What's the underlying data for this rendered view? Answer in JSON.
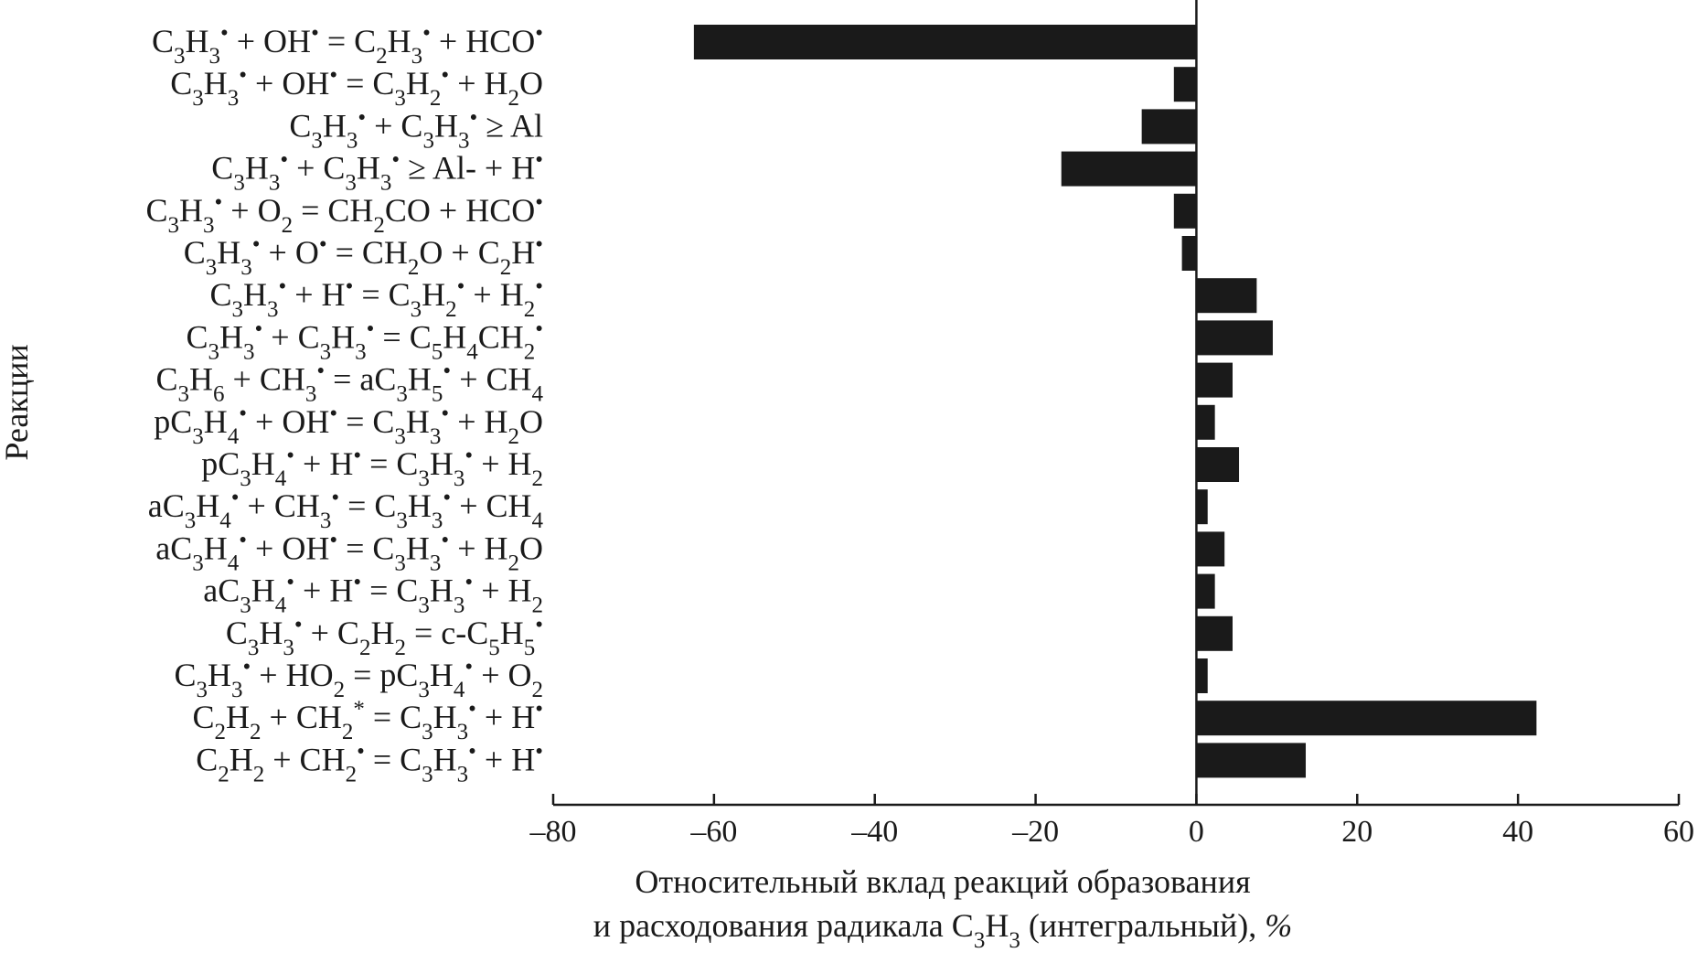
{
  "chart_data": {
    "type": "bar",
    "orientation": "horizontal",
    "ylabel": "Реакции",
    "xlabel_lines": [
      "Относительный вклад реакций образования",
      "и расходования радикала C3H3 (интегральный), %"
    ],
    "xlim": [
      -80,
      60
    ],
    "xticks": [
      -80,
      -60,
      -40,
      -20,
      0,
      20,
      40,
      60
    ],
    "xtick_labels": [
      "–80",
      "–60",
      "–40",
      "–20",
      "0",
      "20",
      "40",
      "60"
    ],
    "grid": false,
    "categories": [
      "C3H3• + OH• = C2H3• + HCO•",
      "C3H3• + OH• = C3H2• + H2O",
      "C3H3• + C3H3• ≥ Al",
      "C3H3• + C3H3• ≥ Al- + H•",
      "C3H3• + O2 = CH2CO + HCO•",
      "C3H3• + O• = CH2O + C2H•",
      "C3H3• + H• = C3H2• + H2•",
      "C3H3• + C3H3• = C5H4CH2•",
      "C3H6 + CH3• = aC3H5• + CH4",
      "pC3H4• + OH• = C3H3• + H2O",
      "pC3H4• + H• = C3H3• + H2",
      "aC3H4• + CH3• = C3H3• + CH4",
      "aC3H4• + OH• = C3H3• + H2O",
      "aC3H4• + H• = C3H3• + H2",
      "C3H3• + C2H2 = c-C5H5•",
      "C3H3• + HO2 = pC3H4• + O2",
      "C2H2 + CH2* = C3H3• + H•",
      "C2H2 + CH2• = C3H3• + H•"
    ],
    "values": [
      -62.5,
      -2.8,
      -6.8,
      -16.8,
      -2.8,
      -1.8,
      7.5,
      9.5,
      4.5,
      2.3,
      5.3,
      1.4,
      3.5,
      2.3,
      4.5,
      1.4,
      42.3,
      13.6
    ],
    "bar_color": "#1a1a1a",
    "label_parts": [
      [
        [
          "C",
          ""
        ],
        [
          "3",
          "sub"
        ],
        [
          "H",
          ""
        ],
        [
          "3",
          "sub"
        ],
        [
          "•",
          "sup"
        ],
        [
          " + OH",
          ""
        ],
        [
          "•",
          "sup"
        ],
        [
          " = C",
          ""
        ],
        [
          "2",
          "sub"
        ],
        [
          "H",
          ""
        ],
        [
          "3",
          "sub"
        ],
        [
          "•",
          "sup"
        ],
        [
          " + HCO",
          ""
        ],
        [
          "•",
          "sup"
        ]
      ],
      [
        [
          "C",
          ""
        ],
        [
          "3",
          "sub"
        ],
        [
          "H",
          ""
        ],
        [
          "3",
          "sub"
        ],
        [
          "•",
          "sup"
        ],
        [
          " + OH",
          ""
        ],
        [
          "•",
          "sup"
        ],
        [
          " = C",
          ""
        ],
        [
          "3",
          "sub"
        ],
        [
          "H",
          ""
        ],
        [
          "2",
          "sub"
        ],
        [
          "•",
          "sup"
        ],
        [
          " + H",
          ""
        ],
        [
          "2",
          "sub"
        ],
        [
          "O",
          ""
        ]
      ],
      [
        [
          "C",
          ""
        ],
        [
          "3",
          "sub"
        ],
        [
          "H",
          ""
        ],
        [
          "3",
          "sub"
        ],
        [
          "•",
          "sup"
        ],
        [
          " + C",
          ""
        ],
        [
          "3",
          "sub"
        ],
        [
          "H",
          ""
        ],
        [
          "3",
          "sub"
        ],
        [
          "•",
          "sup"
        ],
        [
          " ≥ Al",
          ""
        ]
      ],
      [
        [
          "C",
          ""
        ],
        [
          "3",
          "sub"
        ],
        [
          "H",
          ""
        ],
        [
          "3",
          "sub"
        ],
        [
          "•",
          "sup"
        ],
        [
          " + C",
          ""
        ],
        [
          "3",
          "sub"
        ],
        [
          "H",
          ""
        ],
        [
          "3",
          "sub"
        ],
        [
          "•",
          "sup"
        ],
        [
          " ≥ Al- + H",
          ""
        ],
        [
          "•",
          "sup"
        ]
      ],
      [
        [
          "C",
          ""
        ],
        [
          "3",
          "sub"
        ],
        [
          "H",
          ""
        ],
        [
          "3",
          "sub"
        ],
        [
          "•",
          "sup"
        ],
        [
          " + O",
          ""
        ],
        [
          "2",
          "sub"
        ],
        [
          " = CH",
          ""
        ],
        [
          "2",
          "sub"
        ],
        [
          "CO + HCO",
          ""
        ],
        [
          "•",
          "sup"
        ]
      ],
      [
        [
          "C",
          ""
        ],
        [
          "3",
          "sub"
        ],
        [
          "H",
          ""
        ],
        [
          "3",
          "sub"
        ],
        [
          "•",
          "sup"
        ],
        [
          " + O",
          ""
        ],
        [
          "•",
          "sup"
        ],
        [
          " = CH",
          ""
        ],
        [
          "2",
          "sub"
        ],
        [
          "O + C",
          ""
        ],
        [
          "2",
          "sub"
        ],
        [
          "H",
          ""
        ],
        [
          "•",
          "sup"
        ]
      ],
      [
        [
          "C",
          ""
        ],
        [
          "3",
          "sub"
        ],
        [
          "H",
          ""
        ],
        [
          "3",
          "sub"
        ],
        [
          "•",
          "sup"
        ],
        [
          " + H",
          ""
        ],
        [
          "•",
          "sup"
        ],
        [
          " = C",
          ""
        ],
        [
          "3",
          "sub"
        ],
        [
          "H",
          ""
        ],
        [
          "2",
          "sub"
        ],
        [
          "•",
          "sup"
        ],
        [
          " + H",
          ""
        ],
        [
          "2",
          "sub"
        ],
        [
          "•",
          "sup"
        ]
      ],
      [
        [
          "C",
          ""
        ],
        [
          "3",
          "sub"
        ],
        [
          "H",
          ""
        ],
        [
          "3",
          "sub"
        ],
        [
          "•",
          "sup"
        ],
        [
          " + C",
          ""
        ],
        [
          "3",
          "sub"
        ],
        [
          "H",
          ""
        ],
        [
          "3",
          "sub"
        ],
        [
          "•",
          "sup"
        ],
        [
          " = C",
          ""
        ],
        [
          "5",
          "sub"
        ],
        [
          "H",
          ""
        ],
        [
          "4",
          "sub"
        ],
        [
          "CH",
          ""
        ],
        [
          "2",
          "sub"
        ],
        [
          "•",
          "sup"
        ]
      ],
      [
        [
          "C",
          ""
        ],
        [
          "3",
          "sub"
        ],
        [
          "H",
          ""
        ],
        [
          "6",
          "sub"
        ],
        [
          " + CH",
          ""
        ],
        [
          "3",
          "sub"
        ],
        [
          "•",
          "sup"
        ],
        [
          " = aC",
          ""
        ],
        [
          "3",
          "sub"
        ],
        [
          "H",
          ""
        ],
        [
          "5",
          "sub"
        ],
        [
          "•",
          "sup"
        ],
        [
          " + CH",
          ""
        ],
        [
          "4",
          "sub"
        ]
      ],
      [
        [
          "pC",
          ""
        ],
        [
          "3",
          "sub"
        ],
        [
          "H",
          ""
        ],
        [
          "4",
          "sub"
        ],
        [
          "•",
          "sup"
        ],
        [
          " + OH",
          ""
        ],
        [
          "•",
          "sup"
        ],
        [
          " = C",
          ""
        ],
        [
          "3",
          "sub"
        ],
        [
          "H",
          ""
        ],
        [
          "3",
          "sub"
        ],
        [
          "•",
          "sup"
        ],
        [
          " + H",
          ""
        ],
        [
          "2",
          "sub"
        ],
        [
          "O",
          ""
        ]
      ],
      [
        [
          "pC",
          ""
        ],
        [
          "3",
          "sub"
        ],
        [
          "H",
          ""
        ],
        [
          "4",
          "sub"
        ],
        [
          "•",
          "sup"
        ],
        [
          " + H",
          ""
        ],
        [
          "•",
          "sup"
        ],
        [
          " = C",
          ""
        ],
        [
          "3",
          "sub"
        ],
        [
          "H",
          ""
        ],
        [
          "3",
          "sub"
        ],
        [
          "•",
          "sup"
        ],
        [
          " + H",
          ""
        ],
        [
          "2",
          "sub"
        ]
      ],
      [
        [
          "aC",
          ""
        ],
        [
          "3",
          "sub"
        ],
        [
          "H",
          ""
        ],
        [
          "4",
          "sub"
        ],
        [
          "•",
          "sup"
        ],
        [
          " + CH",
          ""
        ],
        [
          "3",
          "sub"
        ],
        [
          "•",
          "sup"
        ],
        [
          " = C",
          ""
        ],
        [
          "3",
          "sub"
        ],
        [
          "H",
          ""
        ],
        [
          "3",
          "sub"
        ],
        [
          "•",
          "sup"
        ],
        [
          " + CH",
          ""
        ],
        [
          "4",
          "sub"
        ]
      ],
      [
        [
          "aC",
          ""
        ],
        [
          "3",
          "sub"
        ],
        [
          "H",
          ""
        ],
        [
          "4",
          "sub"
        ],
        [
          "•",
          "sup"
        ],
        [
          " + OH",
          ""
        ],
        [
          "•",
          "sup"
        ],
        [
          " = C",
          ""
        ],
        [
          "3",
          "sub"
        ],
        [
          "H",
          ""
        ],
        [
          "3",
          "sub"
        ],
        [
          "•",
          "sup"
        ],
        [
          " + H",
          ""
        ],
        [
          "2",
          "sub"
        ],
        [
          "O",
          ""
        ]
      ],
      [
        [
          "aC",
          ""
        ],
        [
          "3",
          "sub"
        ],
        [
          "H",
          ""
        ],
        [
          "4",
          "sub"
        ],
        [
          "•",
          "sup"
        ],
        [
          " + H",
          ""
        ],
        [
          "•",
          "sup"
        ],
        [
          " = C",
          ""
        ],
        [
          "3",
          "sub"
        ],
        [
          "H",
          ""
        ],
        [
          "3",
          "sub"
        ],
        [
          "•",
          "sup"
        ],
        [
          " + H",
          ""
        ],
        [
          "2",
          "sub"
        ]
      ],
      [
        [
          "C",
          ""
        ],
        [
          "3",
          "sub"
        ],
        [
          "H",
          ""
        ],
        [
          "3",
          "sub"
        ],
        [
          "•",
          "sup"
        ],
        [
          " + C",
          ""
        ],
        [
          "2",
          "sub"
        ],
        [
          "H",
          ""
        ],
        [
          "2",
          "sub"
        ],
        [
          " = c-C",
          ""
        ],
        [
          "5",
          "sub"
        ],
        [
          "H",
          ""
        ],
        [
          "5",
          "sub"
        ],
        [
          "•",
          "sup"
        ]
      ],
      [
        [
          "C",
          ""
        ],
        [
          "3",
          "sub"
        ],
        [
          "H",
          ""
        ],
        [
          "3",
          "sub"
        ],
        [
          "•",
          "sup"
        ],
        [
          " + HO",
          ""
        ],
        [
          "2",
          "sub"
        ],
        [
          " = pC",
          ""
        ],
        [
          "3",
          "sub"
        ],
        [
          "H",
          ""
        ],
        [
          "4",
          "sub"
        ],
        [
          "•",
          "sup"
        ],
        [
          " + O",
          ""
        ],
        [
          "2",
          "sub"
        ]
      ],
      [
        [
          "C",
          ""
        ],
        [
          "2",
          "sub"
        ],
        [
          "H",
          ""
        ],
        [
          "2",
          "sub"
        ],
        [
          " + CH",
          ""
        ],
        [
          "2",
          "sub"
        ],
        [
          "*",
          "sup"
        ],
        [
          " = C",
          ""
        ],
        [
          "3",
          "sub"
        ],
        [
          "H",
          ""
        ],
        [
          "3",
          "sub"
        ],
        [
          "•",
          "sup"
        ],
        [
          " + H",
          ""
        ],
        [
          "•",
          "sup"
        ]
      ],
      [
        [
          "C",
          ""
        ],
        [
          "2",
          "sub"
        ],
        [
          "H",
          ""
        ],
        [
          "2",
          "sub"
        ],
        [
          " + CH",
          ""
        ],
        [
          "2",
          "sub"
        ],
        [
          "•",
          "sup"
        ],
        [
          " = C",
          ""
        ],
        [
          "3",
          "sub"
        ],
        [
          "H",
          ""
        ],
        [
          "3",
          "sub"
        ],
        [
          "•",
          "sup"
        ],
        [
          " + H",
          ""
        ],
        [
          "•",
          "sup"
        ]
      ]
    ],
    "xlabel_line2_parts": [
      [
        "и расходования радикала C",
        ""
      ],
      [
        "3",
        "sub"
      ],
      [
        "H",
        ""
      ],
      [
        "3",
        "sub"
      ],
      [
        " (интегральный), ",
        ""
      ],
      [
        "%",
        "ital"
      ]
    ]
  }
}
